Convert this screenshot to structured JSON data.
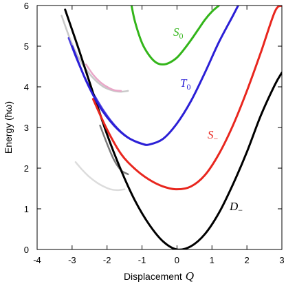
{
  "chart_data": {
    "type": "line",
    "xlabel_prefix": "Displacement",
    "xlabel_symbol": "Q",
    "ylabel": "Energy (ħω)",
    "xlim": [
      -4,
      3
    ],
    "ylim": [
      0,
      6
    ],
    "xticks": [
      "-4",
      "-3",
      "-2",
      "-1",
      "0",
      "1",
      "2",
      "3"
    ],
    "yticks": [
      "0",
      "1",
      "2",
      "3",
      "4",
      "5",
      "6"
    ],
    "grid": false,
    "legend": "none",
    "series": [
      {
        "name": "D",
        "label_main": "D",
        "label_sub": "−",
        "color": "#000000",
        "x": [
          -3.2,
          -2.8,
          -2.4,
          -2.0,
          -1.6,
          -1.2,
          -0.8,
          -0.4,
          0.0,
          0.4,
          0.8,
          1.2,
          1.6,
          2.0,
          2.4,
          2.8,
          3.0
        ],
        "y": [
          5.9,
          4.9,
          3.85,
          2.83,
          1.95,
          1.2,
          0.62,
          0.2,
          0.0,
          0.08,
          0.38,
          0.9,
          1.6,
          2.4,
          3.3,
          4.05,
          4.35
        ]
      },
      {
        "name": "S",
        "label_main": "S",
        "label_sub": "−",
        "color": "#e8261e",
        "x": [
          -2.4,
          -2.0,
          -1.6,
          -1.2,
          -0.8,
          -0.4,
          0.0,
          0.4,
          0.8,
          1.2,
          1.6,
          2.0,
          2.4,
          2.8,
          3.0
        ],
        "y": [
          3.7,
          2.95,
          2.35,
          1.98,
          1.72,
          1.55,
          1.48,
          1.55,
          1.83,
          2.35,
          3.05,
          3.9,
          4.85,
          5.85,
          6.0
        ]
      },
      {
        "name": "T0",
        "label_main": "T",
        "label_sub": "0",
        "color": "#2b1fd6",
        "x": [
          -3.0,
          -2.6,
          -2.2,
          -1.8,
          -1.4,
          -1.0,
          -0.8,
          -0.4,
          0.0,
          0.4,
          0.8,
          1.2,
          1.6,
          1.75
        ],
        "y": [
          5.0,
          4.15,
          3.5,
          3.05,
          2.75,
          2.6,
          2.58,
          2.72,
          3.1,
          3.65,
          4.35,
          5.1,
          5.75,
          6.0
        ]
      },
      {
        "name": "S0",
        "label_main": "S",
        "label_sub": "0",
        "color": "#33b51a",
        "x": [
          -1.3,
          -1.2,
          -1.0,
          -0.8,
          -0.6,
          -0.4,
          -0.2,
          0.0,
          0.2,
          0.4,
          0.6,
          0.8,
          1.0,
          1.2
        ],
        "y": [
          6.0,
          5.6,
          5.08,
          4.78,
          4.6,
          4.55,
          4.6,
          4.72,
          4.92,
          5.15,
          5.4,
          5.65,
          5.85,
          6.0
        ]
      }
    ],
    "faint_branches": [
      {
        "name": "faint-grey-upper",
        "color": "#c8c8c8",
        "x": [
          -3.3,
          -3.0,
          -2.7,
          -2.4,
          -2.1,
          -1.8,
          -1.6,
          -1.4
        ],
        "y": [
          5.75,
          5.05,
          4.55,
          4.22,
          4.0,
          3.9,
          3.88,
          3.9
        ]
      },
      {
        "name": "faint-grey-lower",
        "color": "#dcdcdc",
        "x": [
          -2.9,
          -2.7,
          -2.5,
          -2.3,
          -2.1,
          -1.9,
          -1.7,
          -1.5
        ],
        "y": [
          2.15,
          1.95,
          1.78,
          1.65,
          1.55,
          1.48,
          1.46,
          1.48
        ]
      },
      {
        "name": "faint-pink",
        "color": "#e9a7c8",
        "x": [
          -2.6,
          -2.4,
          -2.2,
          -2.0,
          -1.8,
          -1.6
        ],
        "y": [
          4.55,
          4.3,
          4.12,
          4.0,
          3.92,
          3.9
        ]
      },
      {
        "name": "blue-upper-branch",
        "color": "#4a3fe0",
        "x": [
          -3.1,
          -2.9,
          -2.7,
          -2.5,
          -2.3,
          -2.1,
          -1.9,
          -1.7,
          -1.5,
          -1.3,
          -1.1,
          -0.9
        ],
        "y": [
          5.2,
          4.75,
          4.35,
          4.0,
          3.7,
          3.42,
          3.18,
          2.98,
          2.82,
          2.7,
          2.62,
          2.58
        ]
      },
      {
        "name": "grey-crossing",
        "color": "#7a7a7a",
        "x": [
          -2.2,
          -2.0,
          -1.8,
          -1.6,
          -1.4
        ],
        "y": [
          3.05,
          2.6,
          2.2,
          1.95,
          1.85
        ]
      }
    ]
  }
}
